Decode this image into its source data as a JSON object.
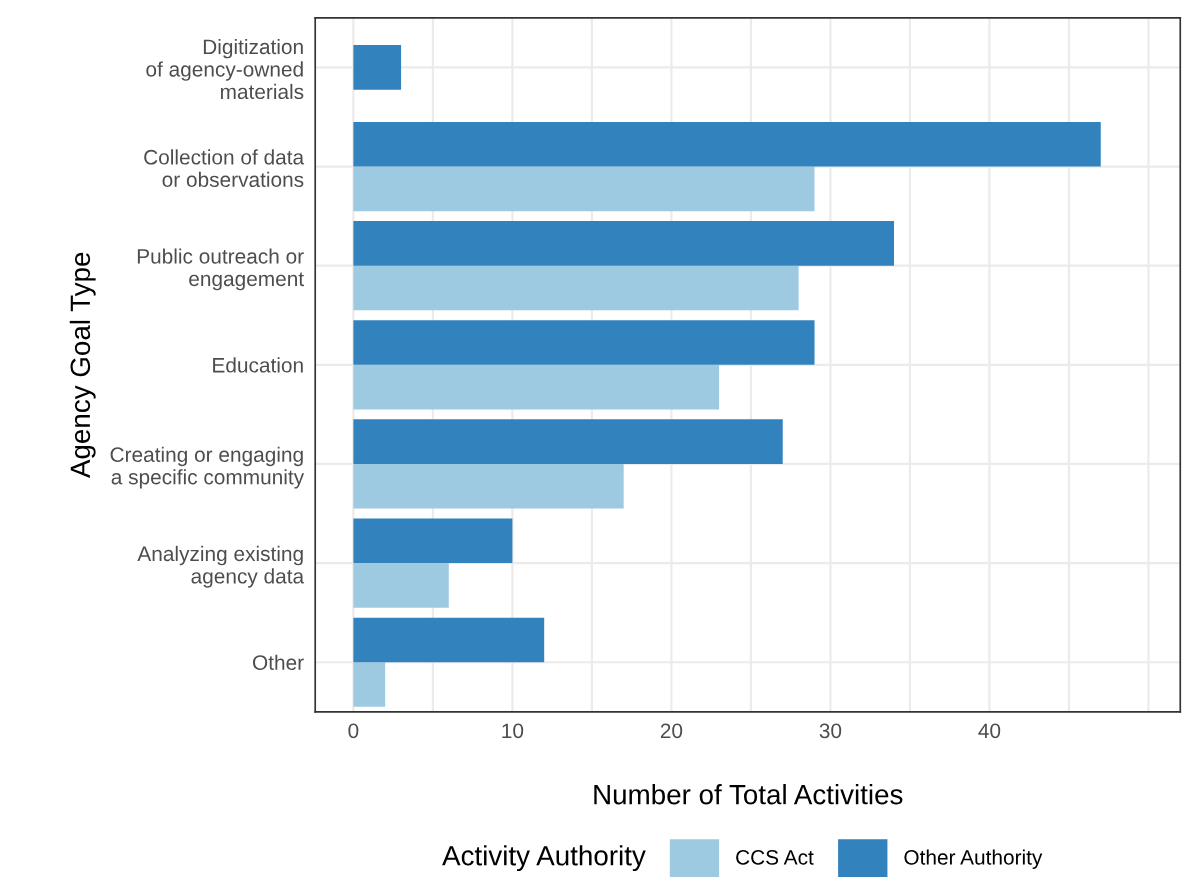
{
  "chart_data": {
    "type": "bar",
    "orientation": "horizontal",
    "xlabel": "Number of Total Activities",
    "ylabel": "Agency Goal Type",
    "legend_title": "Activity Authority",
    "categories": [
      "Digitization\nof agency-owned\nmaterials",
      "Collection of data\nor observations",
      "Public outreach or\nengagement",
      "Education",
      "Creating or engaging\na specific community",
      "Analyzing existing\nagency data",
      "Other"
    ],
    "series": [
      {
        "name": "CCS Act",
        "color": "#9ecae1",
        "values": [
          null,
          29,
          28,
          23,
          17,
          6,
          2
        ]
      },
      {
        "name": "Other Authority",
        "color": "#3182bd",
        "values": [
          3,
          47,
          34,
          29,
          27,
          10,
          12
        ]
      }
    ],
    "xlim": [
      -2.4,
      52
    ],
    "xticks": [
      0,
      {
        "value": 5,
        "label": null
      },
      10,
      {
        "value": 15,
        "label": null
      },
      20,
      {
        "value": 25,
        "label": null
      },
      30,
      {
        "value": 35,
        "label": null
      },
      40,
      {
        "value": 45,
        "label": null
      },
      {
        "value": 50,
        "label": null
      }
    ],
    "grid": true,
    "legend": "bottom"
  }
}
